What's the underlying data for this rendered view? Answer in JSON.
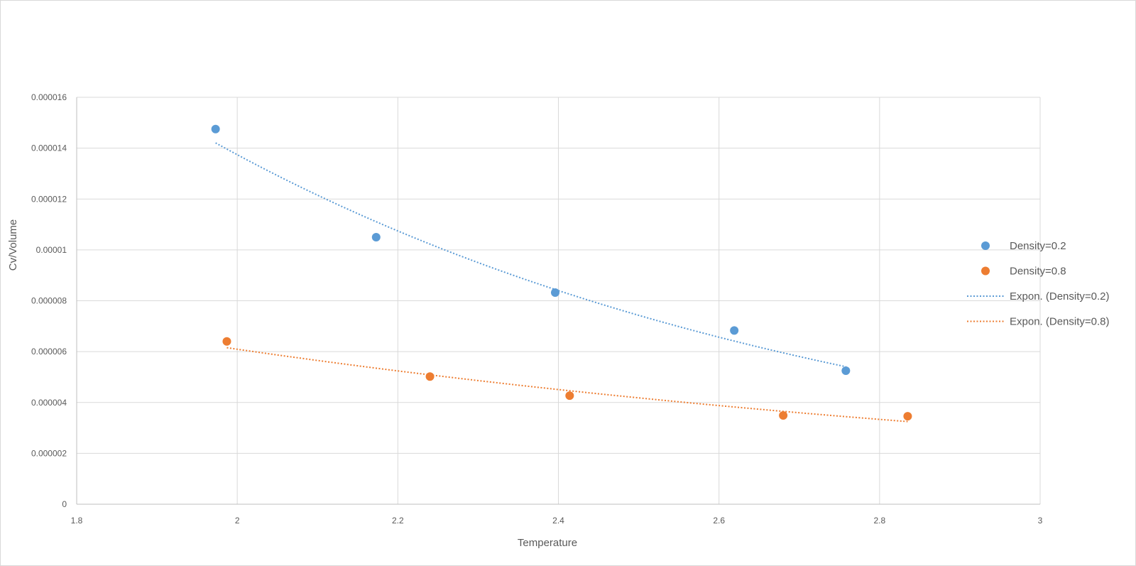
{
  "chart_data": {
    "type": "scatter",
    "title": "",
    "xlabel": "Temperature",
    "ylabel": "Cv/Volume",
    "xlim": [
      1.8,
      3
    ],
    "ylim": [
      0,
      1.6e-05
    ],
    "x_ticks": [
      "1.8",
      "2",
      "2.2",
      "2.4",
      "2.6",
      "2.8",
      "3"
    ],
    "y_ticks": [
      "0",
      "0.000002",
      "0.000004",
      "0.000006",
      "0.000008",
      "0.00001",
      "0.000012",
      "0.000014",
      "0.000016"
    ],
    "grid": true,
    "legend_position": "right",
    "series": [
      {
        "name": "Density=0.2",
        "color": "#5b9bd5",
        "points": [
          [
            1.973,
            1.475e-05
          ],
          [
            2.173,
            1.05e-05
          ],
          [
            2.396,
            8.32e-06
          ],
          [
            2.619,
            6.83e-06
          ],
          [
            2.758,
            5.25e-06
          ]
        ],
        "trendline": {
          "name": "Expon. (Density=0.2)",
          "type": "exponential",
          "dashed": true
        }
      },
      {
        "name": "Density=0.8",
        "color": "#ed7d31",
        "points": [
          [
            1.987,
            6.4e-06
          ],
          [
            2.24,
            5.02e-06
          ],
          [
            2.414,
            4.27e-06
          ],
          [
            2.68,
            3.49e-06
          ],
          [
            2.835,
            3.46e-06
          ]
        ],
        "trendline": {
          "name": "Expon. (Density=0.8)",
          "type": "exponential",
          "dashed": true
        }
      }
    ]
  }
}
